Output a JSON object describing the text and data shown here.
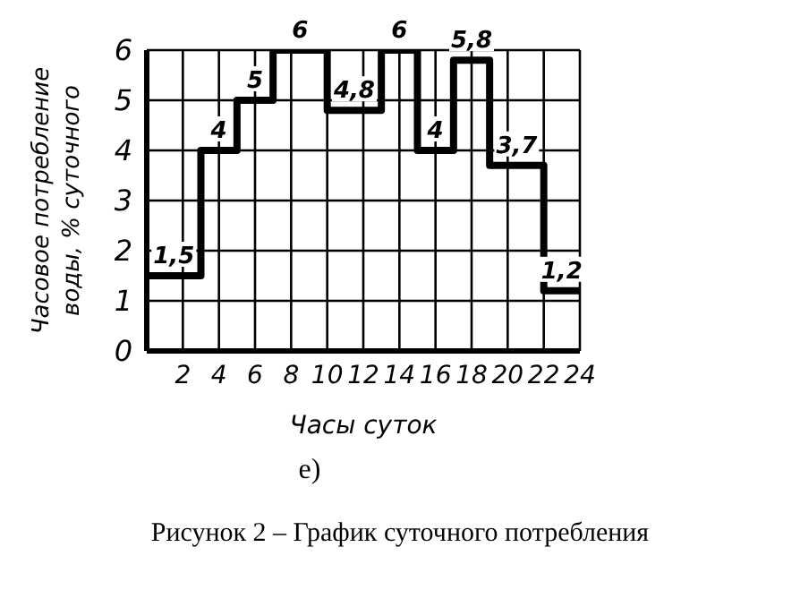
{
  "chart_data": {
    "type": "step",
    "xlabel": "Часы суток",
    "ylabel": "Часовое потребление воды, % суточного",
    "x": [
      0,
      3,
      5,
      7,
      10,
      13,
      15,
      17,
      19,
      22,
      24
    ],
    "values": [
      1.5,
      4,
      5,
      6,
      4.8,
      6,
      4,
      5.8,
      3.7,
      1.2,
      1.2
    ],
    "value_labels": [
      "1,5",
      "4",
      "5",
      "6",
      "4,8",
      "6",
      "4",
      "5,8",
      "3,7",
      "1,2",
      null
    ],
    "color": "#000000",
    "xlim": [
      0,
      24
    ],
    "xticks": [
      {
        "value": 0,
        "label": null
      },
      2,
      4,
      6,
      8,
      10,
      12,
      14,
      16,
      18,
      20,
      22,
      24
    ],
    "ylim": [
      0,
      6
    ],
    "yticks": [
      0,
      1,
      2,
      3,
      4,
      5,
      6
    ],
    "grid": true,
    "annotations": [
      "е)",
      "Рисунок 2 – График суточного потребления"
    ]
  }
}
